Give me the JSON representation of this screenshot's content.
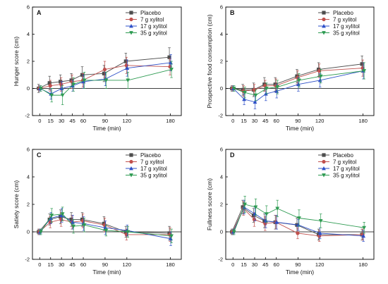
{
  "chart_data": [
    {
      "type": "line",
      "panel_label": "A",
      "xlabel": "Time (min)",
      "ylabel": "Hunger score (cm)",
      "x": [
        0,
        15,
        30,
        45,
        60,
        90,
        120,
        180
      ],
      "xlim": [
        -10,
        195
      ],
      "ylim": [
        -2,
        6
      ],
      "yticks": [
        -2,
        0,
        2,
        4,
        6
      ],
      "legend_position": "top-right",
      "zero_line": true,
      "series": [
        {
          "name": "Placebo",
          "color": "#4d4d4d",
          "marker": "square",
          "values": [
            0,
            0.4,
            0.5,
            0.6,
            1.0,
            1.1,
            2.0,
            2.3
          ],
          "error": [
            0.3,
            0.5,
            0.5,
            0.5,
            0.6,
            0.6,
            0.6,
            0.7
          ]
        },
        {
          "name": "7 g xylitol",
          "color": "#c0504d",
          "marker": "circle",
          "values": [
            0,
            0.2,
            0.3,
            0.5,
            0.6,
            1.4,
            1.7,
            1.6
          ],
          "error": [
            0.2,
            0.4,
            0.5,
            0.5,
            0.5,
            0.6,
            0.6,
            0.6
          ]
        },
        {
          "name": "17 g xylitol",
          "color": "#2e50c8",
          "marker": "triangle-up",
          "values": [
            0,
            -0.4,
            0,
            0.2,
            0.5,
            0.7,
            1.5,
            1.9
          ],
          "error": [
            0.2,
            0.4,
            0.5,
            0.4,
            0.5,
            0.5,
            0.6,
            0.6
          ]
        },
        {
          "name": "35 g xylitol",
          "color": "#2e9b52",
          "marker": "triangle-down",
          "values": [
            0,
            -0.5,
            -0.5,
            0.3,
            0.6,
            0.6,
            0.6,
            1.4
          ],
          "error": [
            0.2,
            0.5,
            0.7,
            0.5,
            0.6,
            0.6,
            0.6,
            0.6
          ]
        }
      ]
    },
    {
      "type": "line",
      "panel_label": "B",
      "xlabel": "Time (min)",
      "ylabel": "Prospective food consumption (cm)",
      "x": [
        0,
        15,
        30,
        45,
        60,
        90,
        120,
        180
      ],
      "xlim": [
        -10,
        195
      ],
      "ylim": [
        -2,
        6
      ],
      "yticks": [
        -2,
        0,
        2,
        4,
        6
      ],
      "legend_position": "top-right",
      "zero_line": true,
      "series": [
        {
          "name": "Placebo",
          "color": "#4d4d4d",
          "marker": "square",
          "values": [
            0,
            -0.1,
            -0.1,
            0.3,
            0.3,
            0.9,
            1.4,
            1.8
          ],
          "error": [
            0.2,
            0.4,
            0.5,
            0.5,
            0.5,
            0.5,
            0.5,
            0.6
          ]
        },
        {
          "name": "7 g xylitol",
          "color": "#c0504d",
          "marker": "circle",
          "values": [
            0,
            -0.2,
            -0.1,
            0.2,
            0.2,
            0.8,
            1.3,
            1.5
          ],
          "error": [
            0.2,
            0.4,
            0.4,
            0.4,
            0.5,
            0.5,
            0.5,
            0.6
          ]
        },
        {
          "name": "17 g xylitol",
          "color": "#2e50c8",
          "marker": "triangle-up",
          "values": [
            0,
            -0.8,
            -1.0,
            -0.4,
            -0.2,
            0.3,
            0.6,
            1.3
          ],
          "error": [
            0.2,
            0.4,
            0.5,
            0.5,
            0.5,
            0.5,
            0.5,
            0.6
          ]
        },
        {
          "name": "35 g xylitol",
          "color": "#2e9b52",
          "marker": "triangle-down",
          "values": [
            0,
            -0.3,
            -0.5,
            0,
            0.1,
            0.6,
            0.9,
            1.3
          ],
          "error": [
            0.2,
            0.4,
            0.4,
            0.4,
            0.5,
            0.5,
            0.5,
            0.6
          ]
        }
      ]
    },
    {
      "type": "line",
      "panel_label": "C",
      "xlabel": "Time (min)",
      "ylabel": "Satiety score (cm)",
      "x": [
        0,
        15,
        30,
        45,
        60,
        90,
        120,
        180
      ],
      "xlim": [
        -10,
        195
      ],
      "ylim": [
        -2,
        6
      ],
      "yticks": [
        -2,
        0,
        2,
        4,
        6
      ],
      "legend_position": "top-right",
      "zero_line": true,
      "series": [
        {
          "name": "Placebo",
          "color": "#4d4d4d",
          "marker": "square",
          "values": [
            0,
            0.9,
            1.1,
            0.9,
            0.9,
            0.6,
            0,
            -0.1
          ],
          "error": [
            0.2,
            0.4,
            0.5,
            0.5,
            0.5,
            0.5,
            0.4,
            0.5
          ]
        },
        {
          "name": "7 g xylitol",
          "color": "#c0504d",
          "marker": "circle",
          "values": [
            0,
            0.7,
            0.9,
            0.7,
            0.8,
            0.5,
            -0.2,
            -0.2
          ],
          "error": [
            0.2,
            0.4,
            0.5,
            0.5,
            0.5,
            0.5,
            0.4,
            0.5
          ]
        },
        {
          "name": "17 g xylitol",
          "color": "#2e50c8",
          "marker": "triangle-up",
          "values": [
            0,
            1.0,
            1.2,
            0.7,
            0.6,
            0.3,
            0.1,
            -0.5
          ],
          "error": [
            0.2,
            0.4,
            0.5,
            0.5,
            0.5,
            0.5,
            0.4,
            0.5
          ]
        },
        {
          "name": "35 g xylitol",
          "color": "#2e9b52",
          "marker": "triangle-down",
          "values": [
            0,
            1.2,
            1.3,
            0.4,
            0.5,
            0.1,
            0,
            -0.3
          ],
          "error": [
            0.2,
            0.5,
            0.5,
            0.5,
            0.5,
            0.4,
            0.4,
            0.5
          ]
        }
      ]
    },
    {
      "type": "line",
      "panel_label": "D",
      "xlabel": "Time (min)",
      "ylabel": "Fullness score (cm)",
      "x": [
        0,
        15,
        30,
        45,
        60,
        90,
        120,
        180
      ],
      "xlim": [
        -10,
        195
      ],
      "ylim": [
        -2,
        6
      ],
      "yticks": [
        -2,
        0,
        2,
        4,
        6
      ],
      "legend_position": "top-right",
      "zero_line": true,
      "series": [
        {
          "name": "Placebo",
          "color": "#4d4d4d",
          "marker": "square",
          "values": [
            0,
            1.8,
            1.2,
            0.8,
            0.7,
            0.5,
            -0.2,
            -0.2
          ],
          "error": [
            0.2,
            0.5,
            0.5,
            0.5,
            0.5,
            0.5,
            0.4,
            0.4
          ]
        },
        {
          "name": "7 g xylitol",
          "color": "#c0504d",
          "marker": "circle",
          "values": [
            0,
            1.7,
            0.9,
            0.6,
            0.7,
            -0.1,
            -0.3,
            -0.2
          ],
          "error": [
            0.2,
            0.5,
            0.5,
            0.5,
            0.5,
            0.4,
            0.4,
            0.4
          ]
        },
        {
          "name": "17 g xylitol",
          "color": "#2e50c8",
          "marker": "triangle-up",
          "values": [
            0,
            1.8,
            1.3,
            0.8,
            0.7,
            0.5,
            -0.1,
            -0.3
          ],
          "error": [
            0.2,
            0.5,
            0.5,
            0.5,
            0.5,
            0.4,
            0.4,
            0.4
          ]
        },
        {
          "name": "35 g xylitol",
          "color": "#2e9b52",
          "marker": "triangle-down",
          "values": [
            0,
            2.0,
            1.8,
            1.3,
            1.7,
            1.0,
            0.8,
            0.3
          ],
          "error": [
            0.2,
            0.6,
            0.6,
            0.6,
            0.6,
            0.6,
            0.5,
            0.4
          ]
        }
      ]
    }
  ]
}
